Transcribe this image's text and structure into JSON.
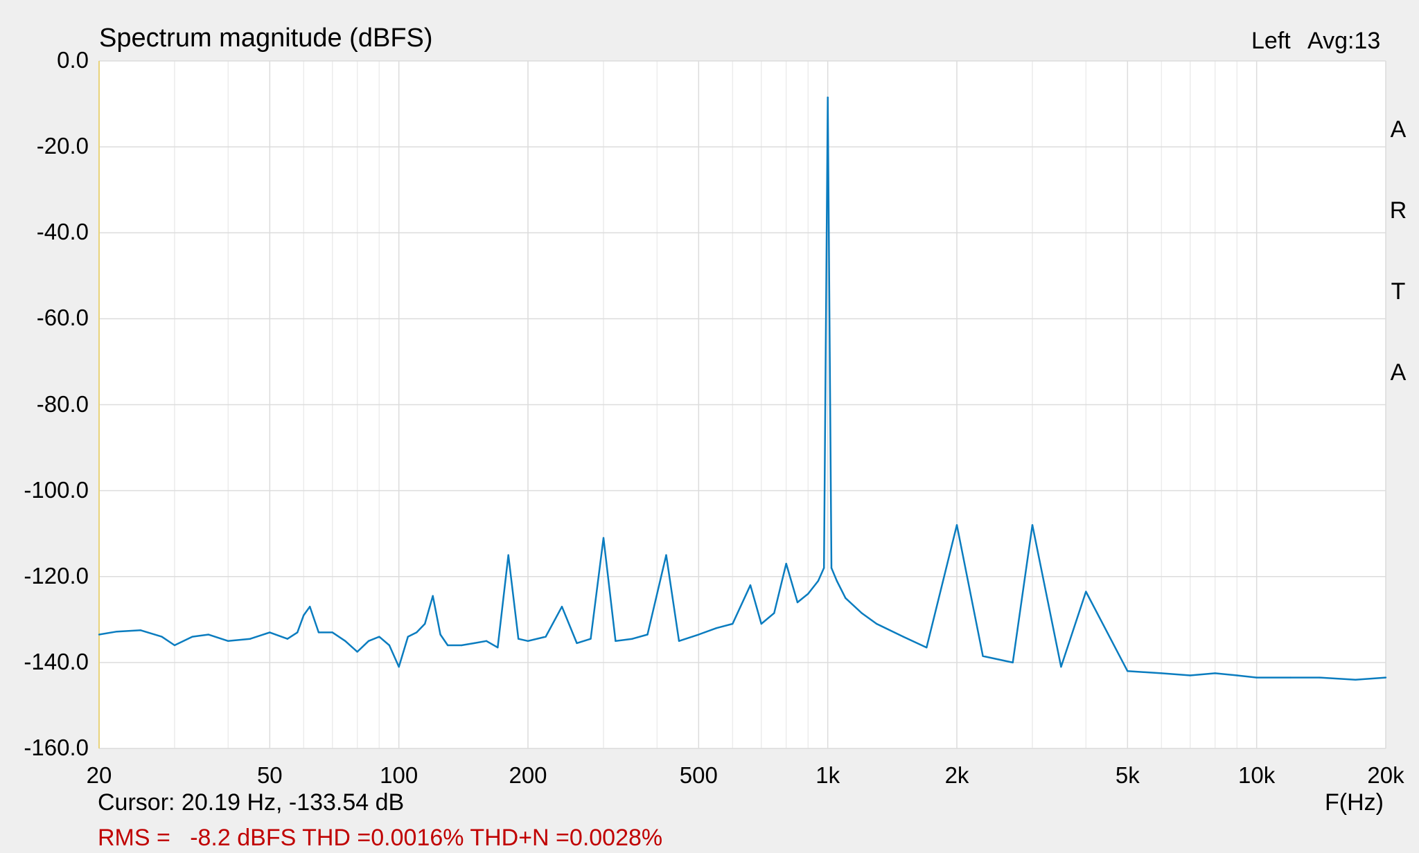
{
  "chart_data": {
    "type": "line",
    "title": "Spectrum magnitude (dBFS)",
    "channel_label": "Left",
    "avg_label": "Avg:13",
    "brand_letters": [
      "A",
      "R",
      "T",
      "A"
    ],
    "xlabel": "F(Hz)",
    "x_scale": "log",
    "xlim": [
      20,
      20000
    ],
    "ylim": [
      -160,
      0
    ],
    "grid": true,
    "y_ticks": [
      {
        "value": 0,
        "label": "0.0"
      },
      {
        "value": -20,
        "label": "-20.0"
      },
      {
        "value": -40,
        "label": "-40.0"
      },
      {
        "value": -60,
        "label": "-60.0"
      },
      {
        "value": -80,
        "label": "-80.0"
      },
      {
        "value": -100,
        "label": "-100.0"
      },
      {
        "value": -120,
        "label": "-120.0"
      },
      {
        "value": -140,
        "label": "-140.0"
      },
      {
        "value": -160,
        "label": "-160.0"
      }
    ],
    "x_ticks": [
      {
        "value": 20,
        "label": "20"
      },
      {
        "value": 50,
        "label": "50"
      },
      {
        "value": 100,
        "label": "100"
      },
      {
        "value": 200,
        "label": "200"
      },
      {
        "value": 500,
        "label": "500"
      },
      {
        "value": 1000,
        "label": "1k"
      },
      {
        "value": 2000,
        "label": "2k"
      },
      {
        "value": 5000,
        "label": "5k"
      },
      {
        "value": 10000,
        "label": "10k"
      },
      {
        "value": 20000,
        "label": "20k"
      }
    ],
    "x_grid_minor": [
      30,
      40,
      60,
      70,
      80,
      90,
      300,
      400,
      600,
      700,
      800,
      900,
      3000,
      4000,
      6000,
      7000,
      8000,
      9000
    ],
    "series_color": "#0a7cbf",
    "series": [
      {
        "x": [
          20,
          22,
          25,
          28,
          30,
          33,
          36,
          40,
          45,
          50,
          55,
          58,
          60,
          62,
          65,
          70,
          75,
          80,
          85,
          90,
          95,
          100,
          105,
          110,
          115,
          120,
          125,
          130,
          140,
          150,
          160,
          170,
          180,
          190,
          200,
          220,
          240,
          260,
          280,
          300,
          320,
          350,
          380,
          420,
          450,
          500,
          550,
          600,
          660,
          700,
          750,
          800,
          850,
          900,
          950,
          980,
          1000,
          1020,
          1050,
          1100,
          1200,
          1300,
          1500,
          1700,
          2000,
          2300,
          2700,
          3000,
          3500,
          4000,
          5000,
          6000,
          7000,
          8000,
          9000,
          10000,
          12000,
          14000,
          17000,
          20000
        ],
        "y": [
          -133.5,
          -132.8,
          -132.5,
          -134,
          -136,
          -134,
          -133.5,
          -135,
          -134.5,
          -133,
          -134.5,
          -133,
          -129,
          -127,
          -133,
          -133,
          -135,
          -137.5,
          -135,
          -134,
          -136,
          -141,
          -134,
          -133,
          -131,
          -124.5,
          -133.5,
          -136,
          -136,
          -135.5,
          -135,
          -136.5,
          -115,
          -134.5,
          -135,
          -134,
          -127,
          -135.5,
          -134.5,
          -111,
          -135,
          -134.5,
          -133.5,
          -115,
          -135,
          -133.5,
          -132,
          -131,
          -122,
          -131,
          -128.5,
          -117,
          -126,
          -124,
          -121,
          -118,
          -8.5,
          -118,
          -121,
          -125,
          -128.5,
          -131,
          -134,
          -136.5,
          -108,
          -138.5,
          -140,
          -108,
          -141,
          -123.5,
          -142,
          -142.5,
          -143,
          -142.5,
          -143,
          -143.5,
          -143.5,
          -143.5,
          -144,
          -143.5
        ]
      }
    ],
    "cursor_readout": "Cursor: 20.19 Hz, -133.54 dB",
    "stats_readout": "RMS =   -8.2 dBFS THD =0.0016% THD+N =0.0028%"
  }
}
